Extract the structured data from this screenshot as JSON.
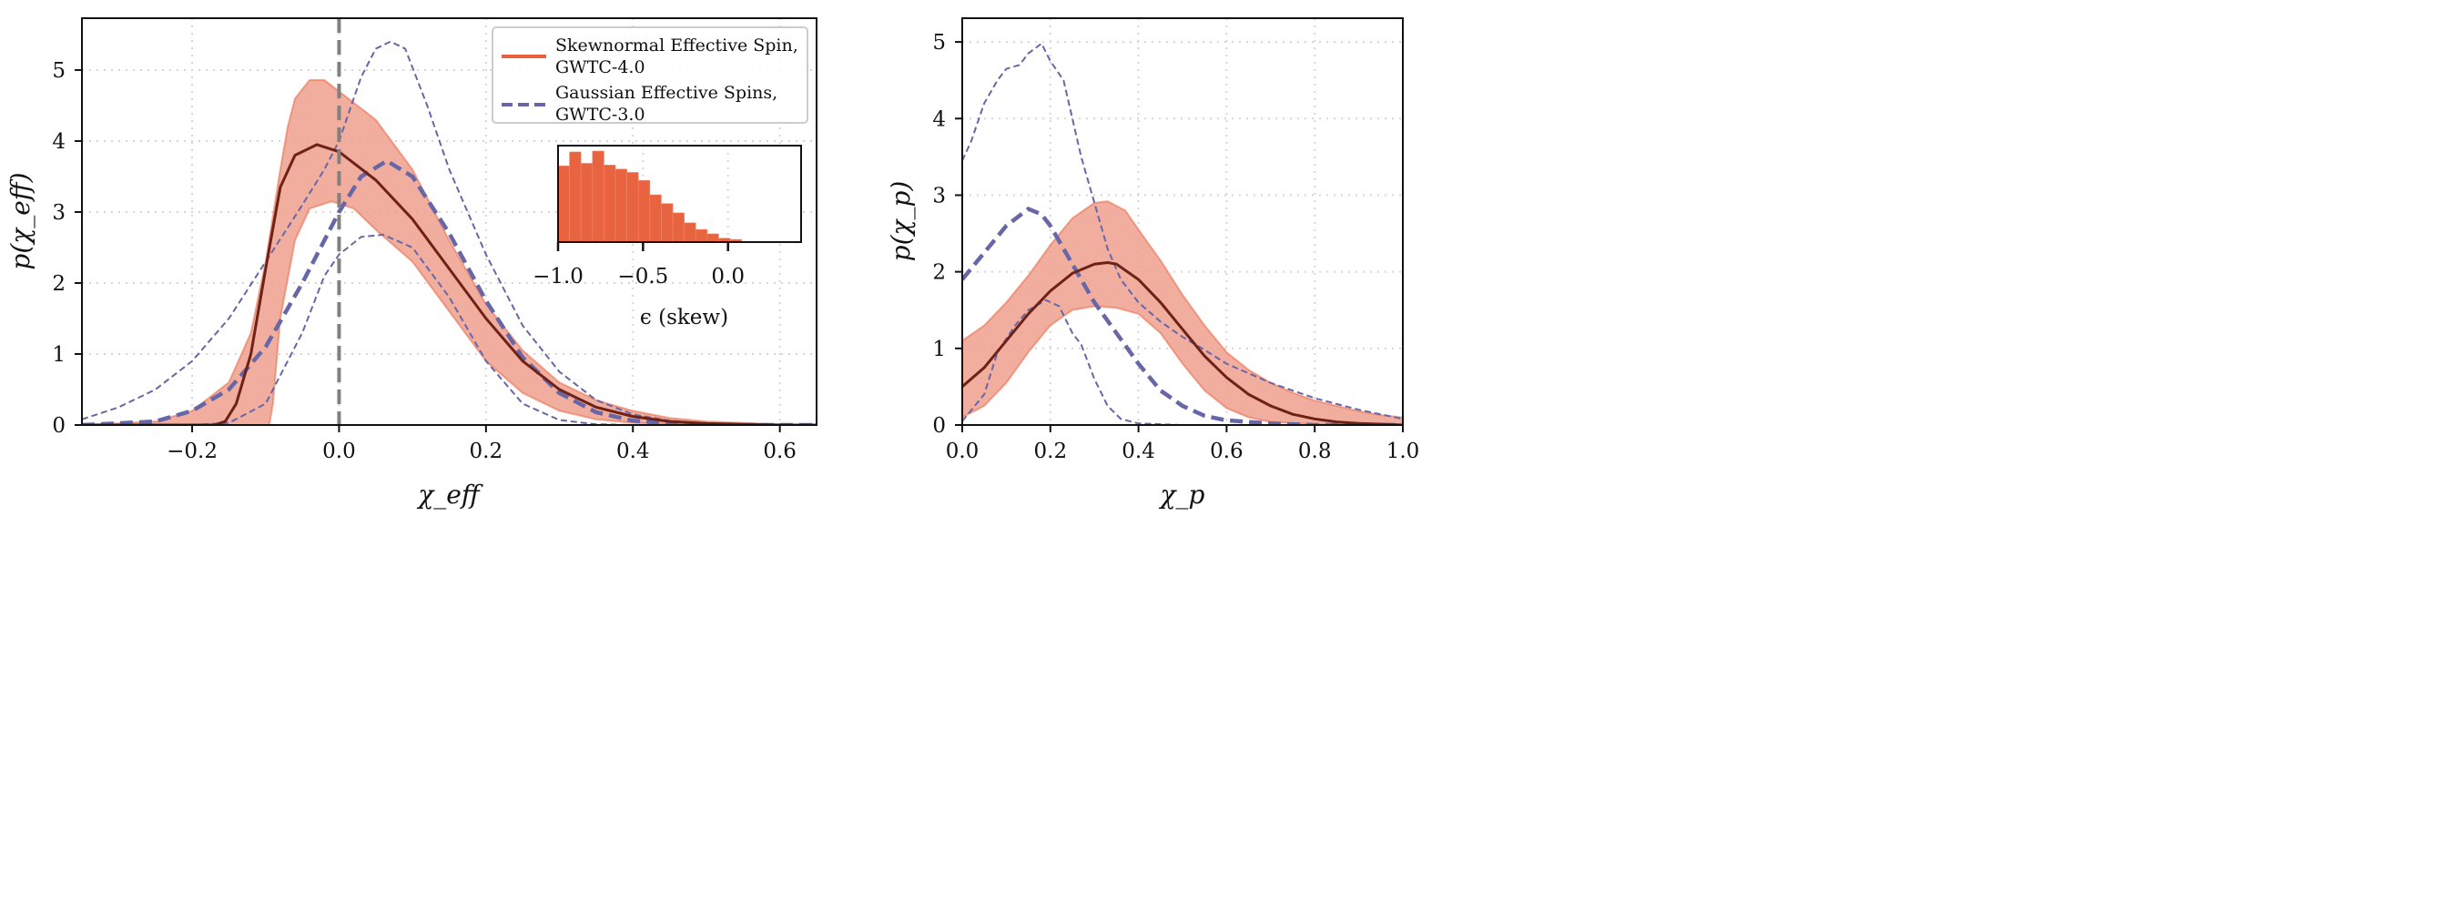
{
  "colors": {
    "skewnormal_band": "#ef9f8c",
    "skewnormal_line": "#e8603c",
    "skewnormal_median": "#6e2117",
    "gaussian": "#6767a8",
    "zero_line": "#808080",
    "histogram": "#e8633f",
    "grid": "#d6d6d6"
  },
  "chart_data": [
    {
      "type": "line",
      "xlabel": "χ_eff",
      "ylabel": "p(χ_eff)",
      "xlim": [
        -0.35,
        0.65
      ],
      "ylim": [
        0,
        5.73
      ],
      "xticks": [
        "−0.2",
        "0.0",
        "0.2",
        "0.4",
        "0.6"
      ],
      "xtick_values": [
        -0.2,
        0.0,
        0.2,
        0.4,
        0.6
      ],
      "yticks": [
        "0",
        "1",
        "2",
        "3",
        "4",
        "5"
      ],
      "ytick_values": [
        0,
        1,
        2,
        3,
        4,
        5
      ],
      "grid": true,
      "vertical_line_x": 0.0,
      "legend": {
        "placement": "top-right",
        "entries": [
          {
            "line1": "Skewnormal Effective Spin,",
            "line2": "GWTC-4.0",
            "style": "solid",
            "color": "#e8603c"
          },
          {
            "line1": "Gaussian Effective Spins,",
            "line2": "GWTC-3.0",
            "style": "dashed",
            "color": "#6767a8"
          }
        ]
      },
      "skewnormal": {
        "median": {
          "x": [
            -0.35,
            -0.17,
            -0.155,
            -0.14,
            -0.12,
            -0.1,
            -0.08,
            -0.06,
            -0.03,
            0.0,
            0.05,
            0.1,
            0.15,
            0.2,
            0.25,
            0.3,
            0.35,
            0.4,
            0.45,
            0.5,
            0.6,
            0.65
          ],
          "y": [
            0,
            0,
            0.05,
            0.3,
            1.0,
            2.2,
            3.35,
            3.8,
            3.95,
            3.85,
            3.45,
            2.9,
            2.2,
            1.5,
            0.9,
            0.5,
            0.25,
            0.12,
            0.05,
            0.02,
            0,
            0
          ]
        },
        "upper": {
          "x": [
            -0.35,
            -0.25,
            -0.2,
            -0.15,
            -0.12,
            -0.1,
            -0.08,
            -0.07,
            -0.06,
            -0.04,
            -0.02,
            0.0,
            0.05,
            0.1,
            0.15,
            0.2,
            0.25,
            0.3,
            0.35,
            0.4,
            0.45,
            0.5,
            0.6,
            0.65
          ],
          "y": [
            0,
            0.05,
            0.2,
            0.6,
            1.3,
            2.3,
            3.6,
            4.2,
            4.6,
            4.86,
            4.86,
            4.7,
            4.3,
            3.6,
            2.6,
            1.7,
            1.05,
            0.6,
            0.35,
            0.2,
            0.1,
            0.05,
            0.01,
            0
          ]
        },
        "lower": {
          "x": [
            -0.35,
            -0.095,
            -0.09,
            -0.08,
            -0.06,
            -0.04,
            -0.01,
            0.02,
            0.05,
            0.1,
            0.15,
            0.2,
            0.25,
            0.3,
            0.35,
            0.4,
            0.5,
            0.65
          ],
          "y": [
            0,
            0,
            0.3,
            1.5,
            2.6,
            3.05,
            3.15,
            3.05,
            2.75,
            2.3,
            1.6,
            0.9,
            0.45,
            0.2,
            0.08,
            0.03,
            0,
            0
          ]
        }
      },
      "gaussian": {
        "median": {
          "x": [
            -0.35,
            -0.25,
            -0.2,
            -0.15,
            -0.1,
            -0.05,
            0.0,
            0.03,
            0.065,
            0.1,
            0.15,
            0.2,
            0.25,
            0.3,
            0.35,
            0.4,
            0.45,
            0.5,
            0.65
          ],
          "y": [
            0,
            0.05,
            0.2,
            0.5,
            1.1,
            2.0,
            3.0,
            3.5,
            3.72,
            3.5,
            2.7,
            1.75,
            0.95,
            0.45,
            0.18,
            0.06,
            0.02,
            0,
            0
          ]
        },
        "upper": {
          "x": [
            -0.35,
            -0.3,
            -0.25,
            -0.2,
            -0.15,
            -0.1,
            -0.05,
            -0.02,
            0.0,
            0.03,
            0.05,
            0.07,
            0.09,
            0.12,
            0.15,
            0.2,
            0.25,
            0.3,
            0.35,
            0.4,
            0.45,
            0.5,
            0.6,
            0.65
          ],
          "y": [
            0.08,
            0.25,
            0.5,
            0.9,
            1.5,
            2.3,
            3.1,
            3.6,
            4.0,
            4.9,
            5.3,
            5.4,
            5.3,
            4.5,
            3.6,
            2.4,
            1.4,
            0.75,
            0.35,
            0.15,
            0.06,
            0.02,
            0,
            0
          ]
        },
        "lower": {
          "x": [
            -0.35,
            -0.2,
            -0.15,
            -0.1,
            -0.05,
            -0.02,
            0.0,
            0.03,
            0.06,
            0.1,
            0.15,
            0.2,
            0.25,
            0.3,
            0.35,
            0.4,
            0.65
          ],
          "y": [
            0,
            0,
            0.03,
            0.3,
            1.3,
            2.1,
            2.4,
            2.65,
            2.68,
            2.5,
            1.8,
            0.9,
            0.3,
            0.07,
            0.01,
            0,
            0
          ]
        }
      },
      "inset": {
        "type": "histogram",
        "xlabel": "ϵ (skew)",
        "xlim": [
          -1.0,
          0.43
        ],
        "xticks": [
          "−1.0",
          "−0.5",
          "0.0"
        ],
        "xtick_values": [
          -1.0,
          -0.5,
          0.0
        ],
        "bin_start": -1.0,
        "bin_width": 0.0675,
        "counts": [
          435,
          515,
          450,
          520,
          440,
          417,
          398,
          352,
          270,
          220,
          167,
          110,
          72,
          47,
          22,
          15,
          3
        ]
      }
    },
    {
      "type": "line",
      "xlabel": "χ_p",
      "ylabel": "p(χ_p)",
      "xlim": [
        0.0,
        1.0
      ],
      "ylim": [
        0,
        5.31
      ],
      "xticks": [
        "0.0",
        "0.2",
        "0.4",
        "0.6",
        "0.8",
        "1.0"
      ],
      "xtick_values": [
        0,
        0.2,
        0.4,
        0.6,
        0.8,
        1.0
      ],
      "yticks": [
        "0",
        "1",
        "2",
        "3",
        "4",
        "5"
      ],
      "ytick_values": [
        0,
        1,
        2,
        3,
        4,
        5
      ],
      "grid": true,
      "skewnormal": {
        "median": {
          "x": [
            0,
            0.05,
            0.1,
            0.15,
            0.2,
            0.25,
            0.3,
            0.33,
            0.35,
            0.4,
            0.45,
            0.5,
            0.55,
            0.6,
            0.65,
            0.7,
            0.75,
            0.8,
            0.85,
            0.9,
            1.0
          ],
          "y": [
            0.5,
            0.75,
            1.1,
            1.45,
            1.75,
            1.98,
            2.1,
            2.12,
            2.1,
            1.9,
            1.6,
            1.25,
            0.9,
            0.62,
            0.4,
            0.25,
            0.14,
            0.08,
            0.04,
            0.02,
            0
          ]
        },
        "upper": {
          "x": [
            0,
            0.05,
            0.1,
            0.15,
            0.2,
            0.25,
            0.3,
            0.33,
            0.37,
            0.4,
            0.45,
            0.5,
            0.55,
            0.6,
            0.65,
            0.7,
            0.75,
            0.8,
            0.85,
            0.9,
            0.95,
            1.0
          ],
          "y": [
            1.1,
            1.3,
            1.6,
            1.95,
            2.35,
            2.7,
            2.9,
            2.92,
            2.8,
            2.55,
            2.15,
            1.7,
            1.3,
            0.95,
            0.72,
            0.55,
            0.42,
            0.32,
            0.25,
            0.18,
            0.13,
            0.1
          ]
        },
        "lower": {
          "x": [
            0,
            0.05,
            0.1,
            0.15,
            0.2,
            0.25,
            0.3,
            0.35,
            0.4,
            0.45,
            0.5,
            0.55,
            0.6,
            0.65,
            0.7,
            0.8,
            1.0
          ],
          "y": [
            0.1,
            0.25,
            0.55,
            0.95,
            1.3,
            1.5,
            1.55,
            1.53,
            1.45,
            1.2,
            0.8,
            0.45,
            0.22,
            0.1,
            0.04,
            0.01,
            0
          ]
        }
      },
      "gaussian": {
        "median": {
          "x": [
            0,
            0.05,
            0.1,
            0.15,
            0.18,
            0.2,
            0.25,
            0.3,
            0.35,
            0.4,
            0.45,
            0.5,
            0.55,
            0.6,
            0.7,
            0.8,
            1.0
          ],
          "y": [
            1.9,
            2.25,
            2.6,
            2.82,
            2.75,
            2.6,
            2.1,
            1.6,
            1.2,
            0.8,
            0.45,
            0.25,
            0.12,
            0.06,
            0.02,
            0,
            0
          ]
        },
        "upper": {
          "x": [
            0,
            0.02,
            0.05,
            0.08,
            0.1,
            0.13,
            0.15,
            0.18,
            0.2,
            0.23,
            0.25,
            0.27,
            0.3,
            0.33,
            0.36,
            0.4,
            0.45,
            0.5,
            0.55,
            0.6,
            0.7,
            0.8,
            0.9,
            1.0
          ],
          "y": [
            3.45,
            3.7,
            4.2,
            4.5,
            4.65,
            4.7,
            4.85,
            4.98,
            4.75,
            4.5,
            4.0,
            3.5,
            2.9,
            2.3,
            1.9,
            1.6,
            1.35,
            1.15,
            0.98,
            0.8,
            0.55,
            0.35,
            0.2,
            0.08
          ]
        },
        "lower": {
          "x": [
            0,
            0.05,
            0.08,
            0.12,
            0.15,
            0.19,
            0.22,
            0.25,
            0.27,
            0.3,
            0.33,
            0.36,
            0.4,
            0.5,
            1.0
          ],
          "y": [
            0.05,
            0.4,
            0.95,
            1.3,
            1.5,
            1.63,
            1.55,
            1.2,
            1.05,
            0.6,
            0.25,
            0.08,
            0.02,
            0,
            0
          ]
        }
      }
    }
  ]
}
